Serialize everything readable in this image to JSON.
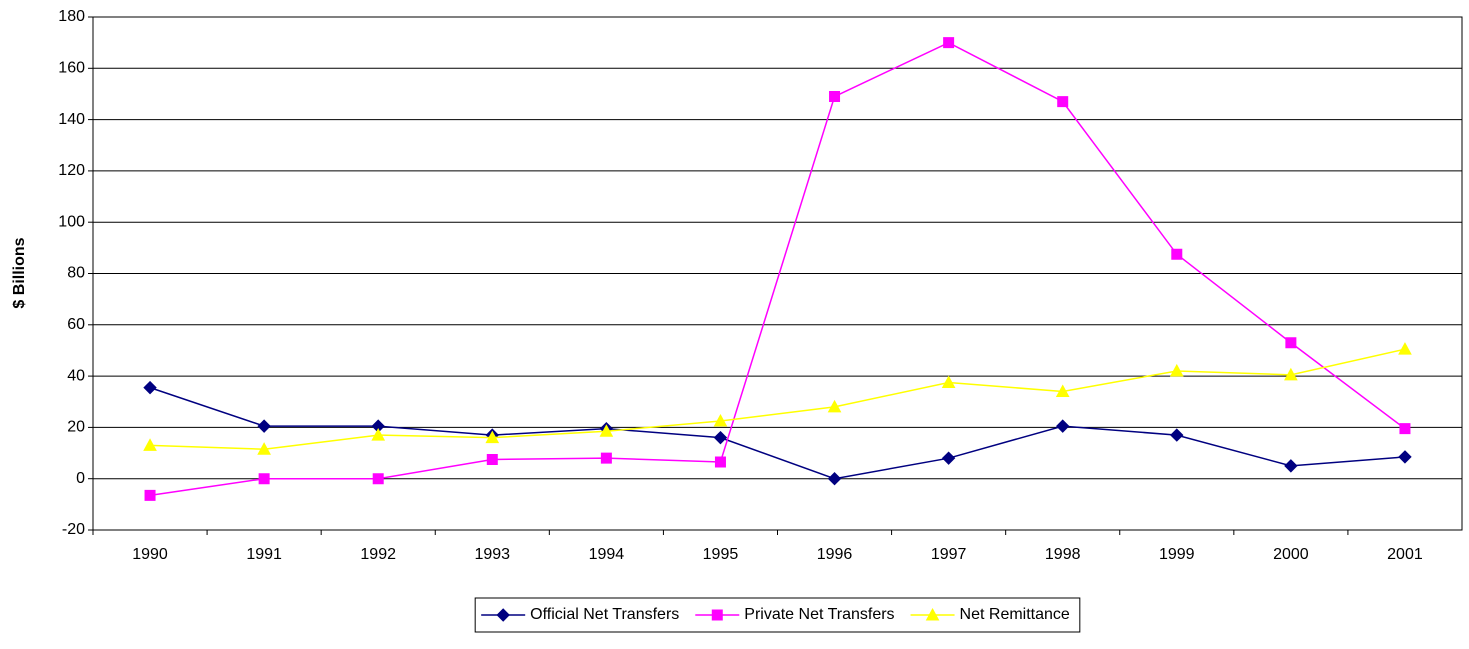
{
  "chart_data": {
    "type": "line",
    "y_label": "$ Billions",
    "categories": [
      "1990",
      "1991",
      "1992",
      "1993",
      "1994",
      "1995",
      "1996",
      "1997",
      "1998",
      "1999",
      "2000",
      "2001"
    ],
    "series": [
      {
        "name": "Official Net Transfers",
        "color": "#000080",
        "marker": "diamond",
        "values": [
          35.5,
          20.5,
          20.5,
          17,
          19.5,
          16,
          0,
          8,
          20.5,
          17,
          5,
          8.5
        ]
      },
      {
        "name": "Private Net Transfers",
        "color": "#ff00ff",
        "marker": "square",
        "values": [
          -6.5,
          0,
          0,
          7.5,
          8,
          6.5,
          149,
          170,
          147,
          87.5,
          53,
          19.5
        ]
      },
      {
        "name": "Net Remittance",
        "color": "#ffff00",
        "marker": "triangle",
        "values": [
          13,
          11.5,
          17,
          16,
          18.5,
          22.5,
          28,
          37.5,
          34,
          42,
          40.5,
          50.5
        ]
      }
    ],
    "ylim": [
      -20,
      180
    ],
    "yticks": [
      -20,
      0,
      20,
      40,
      60,
      80,
      100,
      120,
      140,
      160,
      180
    ],
    "grid": true,
    "legend": "bottom"
  }
}
